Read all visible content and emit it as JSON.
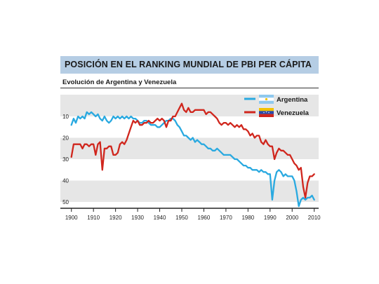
{
  "title": "POSICIÓN EN EL RANKING MUNDIAL DE PBI PER CÁPITA",
  "subtitle": "Evolución de Argentina y Venezuela",
  "colors": {
    "argentina": "#29a9e0",
    "venezuela": "#d0261d",
    "band": "#e6e6e6",
    "title_bg": "#b5cde4"
  },
  "legend": [
    {
      "name": "Argentina",
      "icon": "argentina-flag-icon"
    },
    {
      "name": "Venezuela",
      "icon": "venezuela-flag-icon"
    }
  ],
  "chart_data": {
    "type": "line",
    "title": "POSICIÓN EN EL RANKING MUNDIAL DE PBI PER CÁPITA",
    "subtitle": "Evolución de Argentina y Venezuela",
    "xlabel": "",
    "ylabel": "",
    "xlim": [
      1895,
      2012
    ],
    "ylim": [
      1,
      55
    ],
    "y_inverted": true,
    "x_ticks": [
      1900,
      1910,
      1920,
      1930,
      1940,
      1950,
      1960,
      1970,
      1980,
      1990,
      2000,
      2010
    ],
    "y_ticks": [
      10,
      20,
      30,
      40,
      50
    ],
    "bands": [
      [
        1,
        10
      ],
      [
        20,
        30
      ],
      [
        40,
        50
      ]
    ],
    "legend_position": "top-right",
    "series": [
      {
        "name": "Argentina",
        "x": [
          1900,
          1901,
          1902,
          1903,
          1904,
          1905,
          1906,
          1907,
          1908,
          1909,
          1910,
          1911,
          1912,
          1913,
          1914,
          1915,
          1916,
          1917,
          1918,
          1919,
          1920,
          1921,
          1922,
          1923,
          1924,
          1925,
          1926,
          1927,
          1928,
          1929,
          1930,
          1931,
          1932,
          1933,
          1934,
          1935,
          1936,
          1937,
          1938,
          1939,
          1940,
          1941,
          1942,
          1943,
          1944,
          1945,
          1946,
          1947,
          1948,
          1949,
          1950,
          1951,
          1952,
          1953,
          1954,
          1955,
          1956,
          1957,
          1958,
          1959,
          1960,
          1961,
          1962,
          1963,
          1964,
          1965,
          1966,
          1967,
          1968,
          1969,
          1970,
          1971,
          1972,
          1973,
          1974,
          1975,
          1976,
          1977,
          1978,
          1979,
          1980,
          1981,
          1982,
          1983,
          1984,
          1985,
          1986,
          1987,
          1988,
          1989,
          1990,
          1991,
          1992,
          1993,
          1994,
          1995,
          1996,
          1997,
          1998,
          1999,
          2000,
          2001,
          2002,
          2003,
          2004,
          2005,
          2006,
          2007,
          2008,
          2009,
          2010
        ],
        "values": [
          14,
          11,
          13,
          10,
          11,
          10,
          11,
          8,
          9,
          8,
          9,
          10,
          9,
          11,
          12,
          10,
          12,
          13,
          12,
          10,
          11,
          10,
          11,
          10,
          11,
          10,
          11,
          10,
          11,
          11,
          12,
          13,
          13,
          12,
          12,
          13,
          14,
          14,
          14,
          15,
          15,
          14,
          13,
          12,
          12,
          11,
          11,
          12,
          14,
          15,
          17,
          19,
          19,
          20,
          21,
          20,
          22,
          21,
          22,
          23,
          23,
          24,
          25,
          25,
          26,
          26,
          25,
          26,
          27,
          28,
          28,
          28,
          28,
          29,
          30,
          30,
          31,
          32,
          33,
          33,
          34,
          34,
          35,
          35,
          35,
          36,
          35,
          36,
          36,
          37,
          37,
          49,
          40,
          36,
          35,
          36,
          38,
          37,
          38,
          38,
          38,
          40,
          45,
          52,
          49,
          48,
          49,
          48,
          48,
          47,
          49
        ]
      },
      {
        "name": "Venezuela",
        "x": [
          1900,
          1901,
          1902,
          1903,
          1904,
          1905,
          1906,
          1907,
          1908,
          1909,
          1910,
          1911,
          1912,
          1913,
          1914,
          1915,
          1916,
          1917,
          1918,
          1919,
          1920,
          1921,
          1922,
          1923,
          1924,
          1925,
          1926,
          1927,
          1928,
          1929,
          1930,
          1931,
          1932,
          1933,
          1934,
          1935,
          1936,
          1937,
          1938,
          1939,
          1940,
          1941,
          1942,
          1943,
          1944,
          1945,
          1946,
          1947,
          1948,
          1949,
          1950,
          1951,
          1952,
          1953,
          1954,
          1955,
          1956,
          1957,
          1958,
          1959,
          1960,
          1961,
          1962,
          1963,
          1964,
          1965,
          1966,
          1967,
          1968,
          1969,
          1970,
          1971,
          1972,
          1973,
          1974,
          1975,
          1976,
          1977,
          1978,
          1979,
          1980,
          1981,
          1982,
          1983,
          1984,
          1985,
          1986,
          1987,
          1988,
          1989,
          1990,
          1991,
          1992,
          1993,
          1994,
          1995,
          1996,
          1997,
          1998,
          1999,
          2000,
          2001,
          2002,
          2003,
          2004,
          2005,
          2006,
          2007,
          2008,
          2009,
          2010
        ],
        "values": [
          29,
          23,
          23,
          23,
          23,
          25,
          23,
          23,
          24,
          23,
          23,
          28,
          23,
          22,
          35,
          25,
          25,
          24,
          24,
          28,
          28,
          27,
          23,
          22,
          23,
          21,
          18,
          15,
          12,
          13,
          12,
          14,
          14,
          13,
          13,
          12,
          13,
          13,
          12,
          11,
          12,
          11,
          12,
          15,
          12,
          12,
          10,
          10,
          8,
          6,
          4,
          7,
          8,
          6,
          8,
          8,
          7,
          7,
          7,
          7,
          7,
          9,
          8,
          8,
          9,
          10,
          11,
          13,
          14,
          13,
          13,
          14,
          13,
          14,
          15,
          14,
          15,
          14,
          16,
          16,
          17,
          19,
          18,
          20,
          19,
          19,
          22,
          23,
          21,
          23,
          24,
          24,
          30,
          27,
          25,
          26,
          26,
          27,
          28,
          28,
          30,
          32,
          33,
          35,
          34,
          43,
          48,
          41,
          38,
          38,
          37
        ]
      }
    ]
  }
}
